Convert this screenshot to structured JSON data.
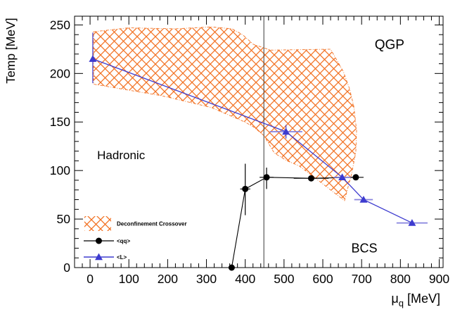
{
  "colors": {
    "background": "#ffffff",
    "band": "#f26f1f",
    "qq_series": "#000000",
    "l_series": "#3d3bcf",
    "l_error_bar": "#8783de",
    "frame": "#000000",
    "vertical_line": "#3a3a3a",
    "text": "#000000"
  },
  "chart_data": {
    "type": "scatter",
    "title": "",
    "xlabel": {
      "symbol": "μ",
      "subscript": "q",
      "unit": " [MeV]"
    },
    "ylabel": "Temp [MeV]",
    "xlim": [
      -40,
      910
    ],
    "ylim": [
      0,
      259
    ],
    "x_major_ticks": [
      0,
      100,
      200,
      300,
      400,
      500,
      600,
      700,
      800,
      900
    ],
    "y_major_ticks": [
      0,
      50,
      100,
      150,
      200,
      250
    ],
    "x_minor_step": 20,
    "y_minor_step": 10,
    "grid": false,
    "legend_position": "bottom-left-inside",
    "vertical_line_x": 448,
    "annotations": [
      {
        "text": "QGP",
        "x": 772,
        "y": 230,
        "font_px": 19
      },
      {
        "text": "Hadronic",
        "x": 80,
        "y": 116,
        "font_px": 17
      },
      {
        "text": "BCS",
        "x": 707,
        "y": 20,
        "font_px": 18
      }
    ],
    "crossover_band": {
      "label": "Deconfinement Crossover",
      "polygon": [
        [
          9,
          243
        ],
        [
          100,
          247
        ],
        [
          221,
          246
        ],
        [
          312,
          248
        ],
        [
          366,
          246
        ],
        [
          393,
          240
        ],
        [
          421,
          230
        ],
        [
          466,
          224
        ],
        [
          620,
          225
        ],
        [
          653,
          202
        ],
        [
          669,
          184
        ],
        [
          680,
          166
        ],
        [
          687,
          141
        ],
        [
          685,
          119
        ],
        [
          674,
          96
        ],
        [
          665,
          83
        ],
        [
          656,
          69
        ],
        [
          620,
          80
        ],
        [
          575,
          94
        ],
        [
          538,
          105
        ],
        [
          508,
          110
        ],
        [
          475,
          118
        ],
        [
          448,
          136
        ],
        [
          421,
          145
        ],
        [
          399,
          150
        ],
        [
          312,
          165
        ],
        [
          185,
          177
        ],
        [
          9,
          189
        ]
      ]
    },
    "series": [
      {
        "name": "<qq>",
        "marker": "circle",
        "points": [
          {
            "x": 365,
            "y": 0
          },
          {
            "x": 400,
            "y": 81,
            "xerr": 13,
            "yerr_up": 26,
            "yerr_dn": 27
          },
          {
            "x": 455,
            "y": 93,
            "xerr": 18,
            "yerr_up": 10,
            "yerr_dn": 12
          },
          {
            "x": 570,
            "y": 92,
            "xerr": 45
          },
          {
            "x": 685,
            "y": 93,
            "xerr": 20
          }
        ]
      },
      {
        "name": "<L>",
        "marker": "triangle",
        "points": [
          {
            "x": 7,
            "y": 215,
            "yerr_up": 27,
            "yerr_dn": 25
          },
          {
            "x": 505,
            "y": 140,
            "xerr": 42,
            "yerr_up": 7,
            "yerr_dn": 7
          },
          {
            "x": 650,
            "y": 93,
            "xerr": 22
          },
          {
            "x": 705,
            "y": 70,
            "xerr": 24
          },
          {
            "x": 830,
            "y": 46,
            "xerr": 40
          }
        ]
      }
    ],
    "legend": {
      "items": [
        {
          "swatch": "hatch",
          "label": "Deconfinement Crossover"
        },
        {
          "swatch": "line-circle",
          "label": "<qq>"
        },
        {
          "swatch": "line-triangle",
          "label": "<L>"
        }
      ]
    }
  }
}
